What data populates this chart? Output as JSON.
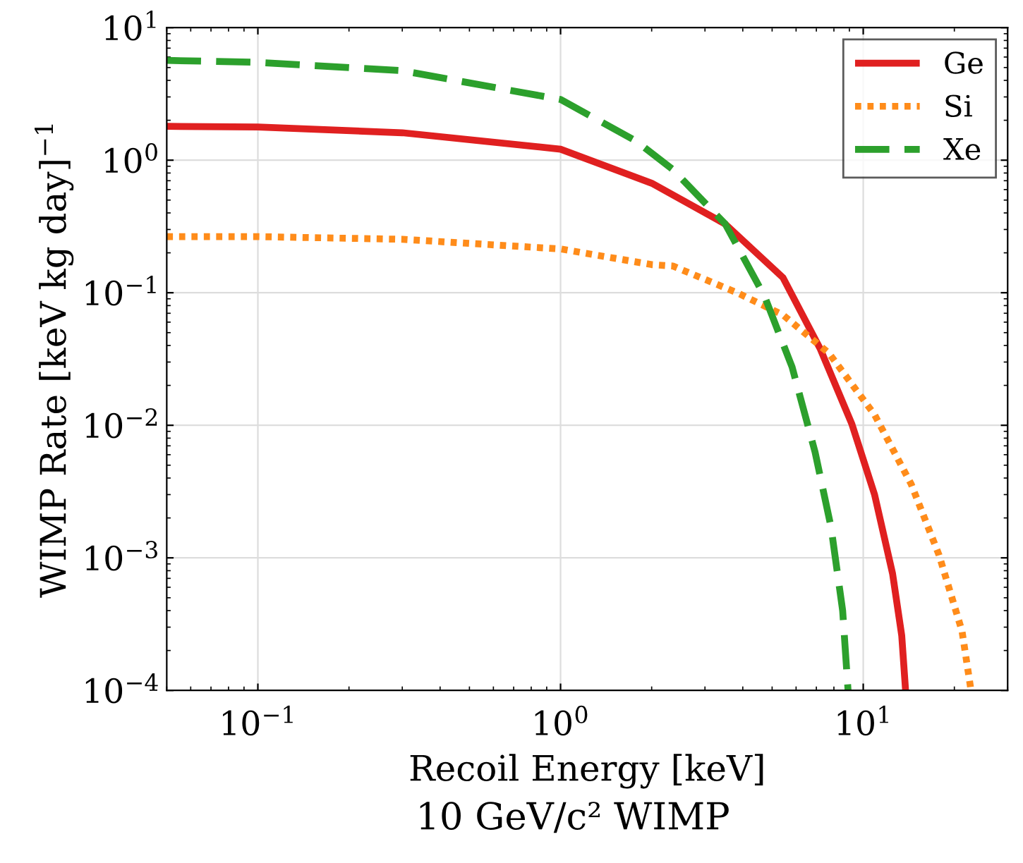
{
  "chart_data": {
    "type": "line",
    "title": "10 GeV/c² WIMP",
    "xlabel": "Recoil Energy [keV]",
    "ylabel": "WIMP Rate [keV kg day]$^{−1}$",
    "log": "xy",
    "xlim": [
      0.05,
      30
    ],
    "ylim": [
      0.0001,
      10
    ],
    "xticks": [
      {
        "value": 0.1,
        "label": "10$^{−1}$"
      },
      {
        "value": 1,
        "label": "10$^{0}$"
      },
      {
        "value": 10,
        "label": "10$^{1}$"
      }
    ],
    "yticks": [
      {
        "value": 0.0001,
        "label": "10$^{−4}$"
      },
      {
        "value": 0.001,
        "label": "10$^{−3}$"
      },
      {
        "value": 0.01,
        "label": "10$^{−2}$"
      },
      {
        "value": 0.1,
        "label": "10$^{−1}$"
      },
      {
        "value": 1,
        "label": "10$^{0}$"
      },
      {
        "value": 10,
        "label": "10$^{1}$"
      }
    ],
    "grid": true,
    "legend": "top right",
    "series": [
      {
        "name": "Ge",
        "color": "#e02020",
        "line_style": "solid",
        "x": [
          0.05,
          0.1,
          0.3,
          1,
          2,
          3.5,
          5.43,
          7.2,
          9.16,
          10.9,
          12.5,
          13.4,
          13.8
        ],
        "values": [
          1.8,
          1.78,
          1.61,
          1.21,
          0.67,
          0.33,
          0.13,
          0.038,
          0.0103,
          0.003,
          0.00076,
          0.00026,
          0.0001
        ]
      },
      {
        "name": "Si",
        "color": "#ff8c1a",
        "line_style": "dotted",
        "x": [
          0.05,
          0.1,
          0.3,
          1,
          2,
          2.35,
          3.83,
          5.43,
          7.7,
          10.9,
          14.4,
          17.8,
          21.2,
          22.7
        ],
        "values": [
          0.265,
          0.265,
          0.253,
          0.214,
          0.163,
          0.159,
          0.1,
          0.068,
          0.035,
          0.012,
          0.0036,
          0.00105,
          0.00028,
          0.0001
        ]
      },
      {
        "name": "Xe",
        "color": "#2ca02c",
        "line_style": "dashed",
        "x": [
          0.05,
          0.1,
          0.3,
          1,
          1.78,
          2.35,
          3.5,
          4.72,
          5.82,
          6.93,
          7.83,
          8.55,
          8.91
        ],
        "values": [
          5.66,
          5.47,
          4.73,
          2.87,
          1.39,
          0.85,
          0.33,
          0.094,
          0.0275,
          0.0063,
          0.0017,
          0.0004,
          0.0001
        ]
      }
    ]
  }
}
